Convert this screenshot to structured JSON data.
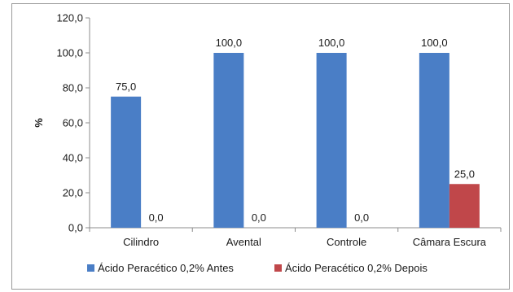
{
  "chart_data": {
    "type": "bar",
    "title": "",
    "xlabel": "",
    "ylabel": "%",
    "ylim": [
      0,
      120
    ],
    "y_ticks": [
      "0,0",
      "20,0",
      "40,0",
      "60,0",
      "80,0",
      "100,0",
      "120,0"
    ],
    "categories": [
      "Cilindro",
      "Avental",
      "Controle",
      "Câmara Escura"
    ],
    "series": [
      {
        "name": "Ácido Peracético 0,2% Antes",
        "color": "#4a7ec6",
        "values": [
          75.0,
          100.0,
          100.0,
          100.0
        ],
        "labels": [
          "75,0",
          "100,0",
          "100,0",
          "100,0"
        ]
      },
      {
        "name": "Ácido Peracético 0,2% Depois",
        "color": "#c0474a",
        "values": [
          0.0,
          0.0,
          0.0,
          25.0
        ],
        "labels": [
          "0,0",
          "0,0",
          "0,0",
          "25,0"
        ]
      }
    ],
    "grid": false,
    "legend_position": "bottom"
  }
}
